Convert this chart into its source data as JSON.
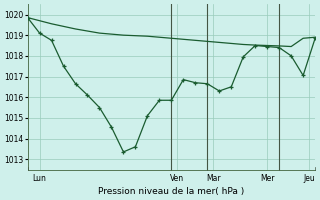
{
  "background_color": "#cff0eb",
  "grid_color": "#99ccbb",
  "line_color": "#1a5c30",
  "xlim": [
    0,
    48
  ],
  "ylim": [
    1012.5,
    1020.5
  ],
  "yticks": [
    1013,
    1014,
    1015,
    1016,
    1017,
    1018,
    1019,
    1020
  ],
  "x_day_positions": [
    0,
    24,
    30,
    36,
    48,
    60
  ],
  "x_tick_labels_pos": [
    2,
    26,
    31,
    40,
    54
  ],
  "x_tick_labels": [
    "Lun",
    "Ven",
    "Mar",
    "Mer",
    "Jeu"
  ],
  "x_vlines": [
    24,
    30,
    42,
    54
  ],
  "xlabel_text": "Pression niveau de la mer( hPa )",
  "trend_x": [
    0,
    4,
    8,
    12,
    16,
    20,
    24,
    28,
    30,
    32,
    34,
    36,
    38,
    40,
    42,
    44,
    46,
    48
  ],
  "trend_y": [
    1019.85,
    1019.55,
    1019.3,
    1019.1,
    1019.0,
    1018.95,
    1018.85,
    1018.75,
    1018.7,
    1018.65,
    1018.6,
    1018.55,
    1018.52,
    1018.5,
    1018.48,
    1018.45,
    1018.85,
    1018.9
  ],
  "actual_x": [
    0,
    2,
    4,
    6,
    8,
    10,
    12,
    14,
    16,
    18,
    20,
    22,
    24,
    26,
    28,
    30,
    32,
    34,
    36,
    38,
    40,
    42,
    44,
    46,
    48
  ],
  "actual_y": [
    1019.85,
    1019.1,
    1018.75,
    1017.5,
    1016.65,
    1016.1,
    1015.5,
    1014.55,
    1013.35,
    1013.6,
    1015.1,
    1015.85,
    1015.85,
    1016.85,
    1016.7,
    1016.65,
    1016.3,
    1016.5,
    1017.95,
    1018.5,
    1018.45,
    1018.4,
    1018.0,
    1017.05,
    1018.85
  ]
}
